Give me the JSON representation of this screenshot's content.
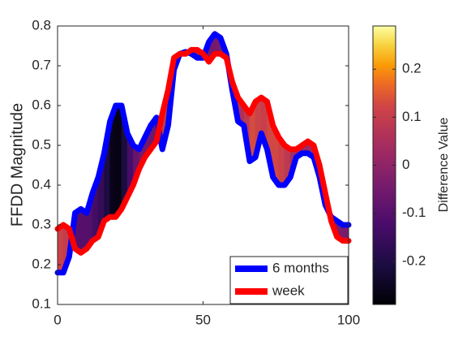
{
  "chart_data": {
    "type": "line",
    "ylabel": "FFDD Magnitude",
    "x": [
      0,
      2,
      4,
      6,
      8,
      10,
      12,
      14,
      16,
      18,
      20,
      22,
      24,
      26,
      28,
      30,
      32,
      34,
      36,
      38,
      40,
      42,
      44,
      46,
      48,
      50,
      52,
      54,
      56,
      58,
      60,
      62,
      64,
      66,
      68,
      70,
      72,
      74,
      76,
      78,
      80,
      82,
      84,
      86,
      88,
      90,
      92,
      94,
      96,
      98,
      100
    ],
    "series": [
      {
        "name": "6 months",
        "color": "#0000ff",
        "values": [
          0.18,
          0.18,
          0.22,
          0.33,
          0.34,
          0.33,
          0.38,
          0.42,
          0.48,
          0.56,
          0.6,
          0.6,
          0.53,
          0.5,
          0.49,
          0.52,
          0.55,
          0.57,
          0.49,
          0.55,
          0.69,
          0.73,
          0.735,
          0.73,
          0.72,
          0.72,
          0.76,
          0.78,
          0.77,
          0.73,
          0.64,
          0.56,
          0.55,
          0.46,
          0.47,
          0.53,
          0.49,
          0.42,
          0.4,
          0.4,
          0.42,
          0.47,
          0.48,
          0.48,
          0.47,
          0.42,
          0.35,
          0.32,
          0.31,
          0.3,
          0.3
        ]
      },
      {
        "name": "week",
        "color": "#ff0000",
        "values": [
          0.29,
          0.3,
          0.29,
          0.24,
          0.23,
          0.24,
          0.26,
          0.27,
          0.31,
          0.32,
          0.32,
          0.34,
          0.37,
          0.4,
          0.44,
          0.47,
          0.49,
          0.51,
          0.58,
          0.64,
          0.72,
          0.73,
          0.73,
          0.74,
          0.74,
          0.73,
          0.71,
          0.73,
          0.73,
          0.72,
          0.66,
          0.62,
          0.6,
          0.58,
          0.61,
          0.62,
          0.61,
          0.55,
          0.52,
          0.5,
          0.49,
          0.49,
          0.5,
          0.51,
          0.5,
          0.45,
          0.38,
          0.31,
          0.27,
          0.26,
          0.26
        ]
      }
    ],
    "xlim": [
      0,
      100
    ],
    "xticks": [
      0,
      50,
      100
    ],
    "ylim": [
      0.1,
      0.8
    ],
    "yticks": [
      0.1,
      0.2,
      0.3,
      0.4,
      0.5,
      0.6,
      0.7,
      0.8
    ],
    "colormap": "inferno",
    "colorbar_label": "Difference Value",
    "clim": [
      -0.29,
      0.29
    ],
    "cticks": [
      -0.2,
      -0.1,
      0,
      0.1,
      0.2
    ],
    "legend": "lower right"
  }
}
